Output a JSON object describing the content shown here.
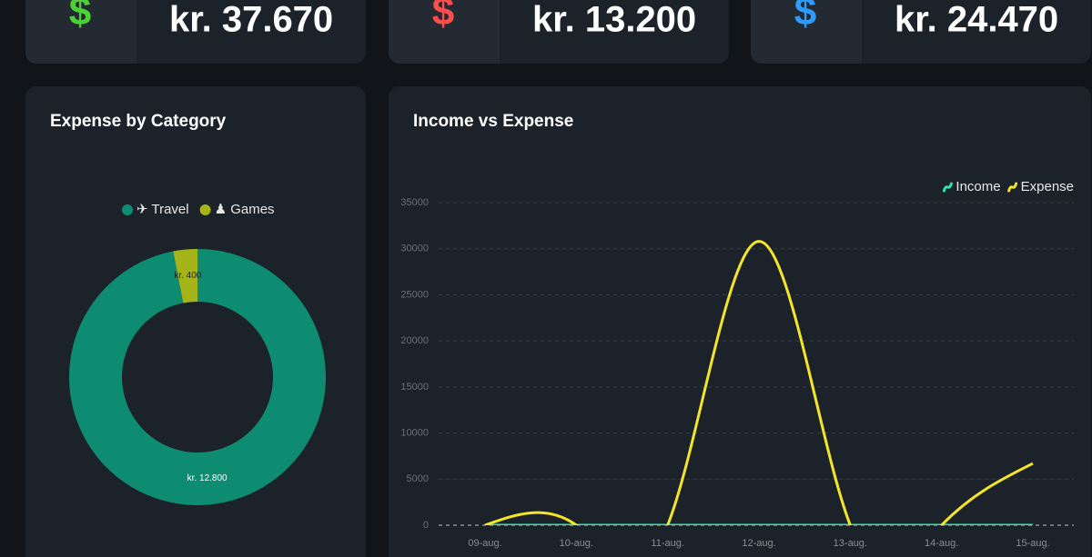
{
  "cards": [
    {
      "icon": "$",
      "icon_color": "#4cd137",
      "value": "kr. 37.670"
    },
    {
      "icon": "$",
      "icon_color": "#ff4d4d",
      "value": "kr. 13.200"
    },
    {
      "icon": "$",
      "icon_color": "#2e9bff",
      "value": "kr. 24.470"
    }
  ],
  "chart_data": [
    {
      "type": "donut",
      "title": "Expense by Category",
      "categories": [
        "✈ Travel",
        "♟ Games"
      ],
      "values": [
        12800,
        400
      ],
      "value_labels": [
        "kr. 12.800",
        "kr. 400"
      ],
      "colors": [
        "#0e8c72",
        "#a5b418"
      ]
    },
    {
      "type": "line",
      "title": "Income vs Expense",
      "categories": [
        "09-aug.",
        "10-aug.",
        "11-aug.",
        "12-aug.",
        "13-aug.",
        "14-aug.",
        "15-aug."
      ],
      "series": [
        {
          "name": "Income",
          "color": "#2ee6a8",
          "values": [
            0,
            0,
            0,
            0,
            0,
            0,
            0
          ]
        },
        {
          "name": "Expense",
          "color": "#f5e52a",
          "values": [
            0,
            0,
            0,
            30800,
            0,
            0,
            6700
          ]
        }
      ],
      "ylim": [
        0,
        35000
      ],
      "yticks": [
        0,
        5000,
        10000,
        15000,
        20000,
        25000,
        30000,
        35000
      ],
      "grid": true,
      "legend": "top-right"
    }
  ]
}
